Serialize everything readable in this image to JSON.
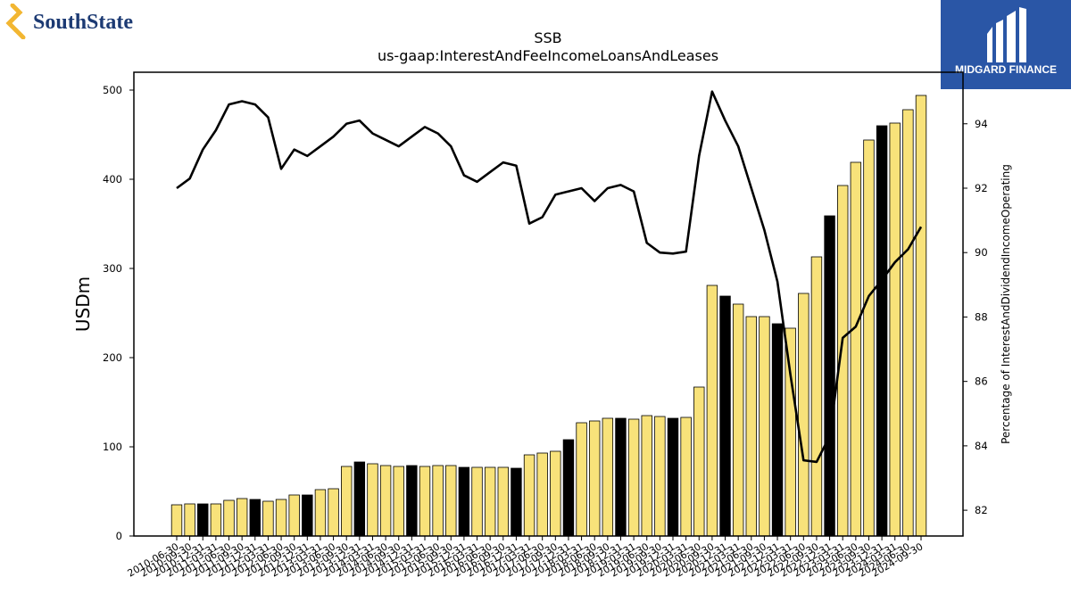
{
  "logos": {
    "left_text": "SouthState",
    "right_text": "MIDGARD FINANCE"
  },
  "colors": {
    "bar_fill": "#f8e27a",
    "bar_highlight": "#000000",
    "line": "#000000",
    "logo_blue_text": "#1c3a73",
    "logo_gold": "#f2b632",
    "midgard_bg": "#2a56a6"
  },
  "chart_data": {
    "type": "bar",
    "title": "SSB",
    "subtitle": "us-gaap:InterestAndFeeIncomeLoansAndLeases",
    "ylabel": "USDm",
    "y2label": "Percentage of InterestAndDividendIncomeOperating",
    "ylim": [
      0,
      520
    ],
    "y2lim": [
      81.2,
      95.6
    ],
    "yticks": [
      0,
      100,
      200,
      300,
      400,
      500
    ],
    "y2ticks": [
      82,
      84,
      86,
      88,
      90,
      92,
      94
    ],
    "categories": [
      "2010-06-30",
      "2010-09-30",
      "2010-12-31",
      "2011-03-31",
      "2011-06-30",
      "2011-09-30",
      "2011-12-31",
      "2012-03-31",
      "2012-06-30",
      "2012-09-30",
      "2012-12-31",
      "2013-03-31",
      "2013-06-30",
      "2013-09-30",
      "2013-12-31",
      "2014-03-31",
      "2014-06-30",
      "2014-09-30",
      "2014-12-31",
      "2015-03-31",
      "2015-06-30",
      "2015-09-30",
      "2015-12-31",
      "2016-03-31",
      "2016-06-30",
      "2016-09-30",
      "2016-12-31",
      "2017-03-31",
      "2017-06-30",
      "2017-09-30",
      "2017-12-31",
      "2018-03-31",
      "2018-06-30",
      "2018-09-30",
      "2018-12-31",
      "2019-03-31",
      "2019-06-30",
      "2019-09-30",
      "2019-12-31",
      "2020-03-31",
      "2020-06-30",
      "2020-09-30",
      "2020-12-31",
      "2021-03-31",
      "2021-06-30",
      "2021-09-30",
      "2021-12-31",
      "2022-03-31",
      "2022-06-30",
      "2022-09-30",
      "2022-12-31",
      "2023-03-31",
      "2023-06-30",
      "2023-09-30",
      "2023-12-31",
      "2024-03-31",
      "2024-06-30",
      "2024-09-30"
    ],
    "xtick_labels": [
      "2010-06-30",
      "2010-09-30",
      "2010-12-31",
      "2011-03-31",
      "2011-06-30",
      "2011-09-30",
      "2011-12-31",
      "2012-03-31",
      "2012-06-30",
      "2012-09-30",
      "2012-12-31",
      "2013-03-31",
      "2013-06-30",
      "2013-09-30",
      "2013-12-31",
      "2014-03-31",
      "2014-06-30",
      "2014-09-30",
      "2014-12-31",
      "2015-03-31",
      "2015-06-30",
      "2015-09-30",
      "2015-12-31",
      "2016-03-31",
      "2016-06-30",
      "2016-09-30",
      "2016-12-31",
      "2017-03-31",
      "2017-06-30",
      "2017-09-30",
      "2017-12-31",
      "2018-03-31",
      "2018-06-30",
      "2018-09-30",
      "2018-12-31",
      "2019-03-31",
      "2019-06-30",
      "2019-09-30",
      "2019-12-31",
      "2020-03-31",
      "2020-06-30",
      "2020-09-30",
      "2020-12-31",
      "2021-03-31",
      "2021-06-30",
      "2021-09-30",
      "2021-12-31",
      "2022-03-31",
      "2022-06-30",
      "2022-09-30",
      "2022-12-31",
      "2023-03-31",
      "2023-06-30",
      "2023-09-30",
      "2023-12-31",
      "2024-03-31",
      "2024-06-30",
      "2024-09-30"
    ],
    "values": [
      35,
      36,
      36,
      36,
      40,
      42,
      41,
      39,
      41,
      46,
      46,
      52,
      53,
      78,
      83,
      81,
      79,
      78,
      79,
      78,
      79,
      79,
      77,
      77,
      77,
      77,
      76,
      91,
      93,
      95,
      108,
      127,
      129,
      132,
      132,
      131,
      135,
      134,
      132,
      133,
      167,
      281,
      269,
      260,
      246,
      246,
      238,
      233,
      272,
      313,
      359,
      393,
      419,
      444,
      460,
      463,
      478,
      494
    ],
    "highlight": [
      false,
      false,
      true,
      false,
      false,
      false,
      true,
      false,
      false,
      false,
      true,
      false,
      false,
      false,
      true,
      false,
      false,
      false,
      true,
      false,
      false,
      false,
      true,
      false,
      false,
      false,
      true,
      false,
      false,
      false,
      true,
      false,
      false,
      false,
      true,
      false,
      false,
      false,
      true,
      false,
      false,
      false,
      true,
      false,
      false,
      false,
      true,
      false,
      false,
      false,
      true,
      false,
      false,
      false,
      true,
      false,
      false,
      false
    ],
    "series_pct": [
      92.0,
      92.3,
      93.2,
      93.8,
      94.6,
      94.7,
      94.6,
      94.2,
      92.6,
      93.2,
      93.0,
      93.3,
      93.6,
      94.0,
      94.1,
      93.7,
      93.5,
      93.3,
      93.6,
      93.9,
      93.7,
      93.3,
      92.4,
      92.2,
      92.5,
      92.8,
      92.7,
      90.9,
      91.1,
      91.8,
      91.9,
      92.0,
      91.6,
      92.0,
      92.1,
      91.9,
      90.3,
      90.0,
      89.97,
      90.03,
      93.0,
      95.0,
      94.1,
      93.3,
      92.0,
      90.7,
      89.1,
      86.2,
      83.55,
      83.5,
      84.3,
      87.35,
      87.7,
      88.65,
      89.15,
      89.7,
      90.1,
      90.8
    ]
  }
}
